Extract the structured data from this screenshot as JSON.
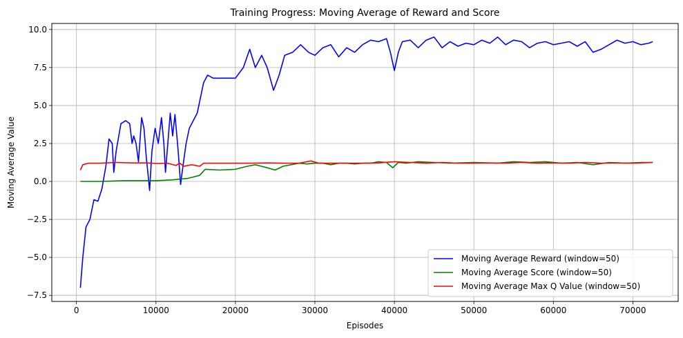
{
  "chart_data": {
    "type": "line",
    "title": "Training Progress: Moving Average of Reward and Score",
    "xlabel": "Episodes",
    "ylabel": "Moving Average Value",
    "xlim": [
      -3100,
      75700
    ],
    "ylim": [
      -7.9,
      10.4
    ],
    "xticks": [
      0,
      10000,
      20000,
      30000,
      40000,
      50000,
      60000,
      70000
    ],
    "xtick_labels": [
      "0",
      "10000",
      "20000",
      "30000",
      "40000",
      "50000",
      "60000",
      "70000"
    ],
    "yticks": [
      -7.5,
      -5.0,
      -2.5,
      0.0,
      2.5,
      5.0,
      7.5,
      10.0
    ],
    "ytick_labels": [
      "−7.5",
      "−5.0",
      "−2.5",
      "0.0",
      "2.5",
      "5.0",
      "7.5",
      "10.0"
    ],
    "grid": true,
    "legend_position": "bottom-right",
    "series": [
      {
        "name": "Moving Average Reward (window=50)",
        "color": "#0000ff",
        "points": [
          [
            500,
            -7.0
          ],
          [
            800,
            -5.0
          ],
          [
            1200,
            -3.0
          ],
          [
            1700,
            -2.5
          ],
          [
            2200,
            -1.2
          ],
          [
            2700,
            -1.3
          ],
          [
            3200,
            -0.5
          ],
          [
            3700,
            1.0
          ],
          [
            4100,
            2.8
          ],
          [
            4500,
            2.5
          ],
          [
            4700,
            0.6
          ],
          [
            5000,
            2.0
          ],
          [
            5600,
            3.8
          ],
          [
            6200,
            4.0
          ],
          [
            6700,
            3.8
          ],
          [
            7000,
            2.5
          ],
          [
            7200,
            3.0
          ],
          [
            7500,
            2.5
          ],
          [
            7800,
            1.3
          ],
          [
            8200,
            4.2
          ],
          [
            8500,
            3.5
          ],
          [
            8800,
            1.5
          ],
          [
            9000,
            0.5
          ],
          [
            9200,
            -0.6
          ],
          [
            9500,
            2.0
          ],
          [
            9900,
            3.5
          ],
          [
            10300,
            2.5
          ],
          [
            10700,
            4.2
          ],
          [
            11000,
            2.5
          ],
          [
            11200,
            0.6
          ],
          [
            11500,
            2.5
          ],
          [
            11800,
            4.5
          ],
          [
            12100,
            3.0
          ],
          [
            12400,
            4.4
          ],
          [
            12800,
            2.0
          ],
          [
            13100,
            -0.2
          ],
          [
            13400,
            1.0
          ],
          [
            13800,
            2.5
          ],
          [
            14200,
            3.5
          ],
          [
            14700,
            4.0
          ],
          [
            15200,
            4.5
          ],
          [
            15600,
            5.5
          ],
          [
            16000,
            6.5
          ],
          [
            16500,
            7.0
          ],
          [
            17200,
            6.8
          ],
          [
            18000,
            6.8
          ],
          [
            19000,
            6.8
          ],
          [
            20000,
            6.8
          ],
          [
            21000,
            7.5
          ],
          [
            21800,
            8.7
          ],
          [
            22500,
            7.5
          ],
          [
            23300,
            8.3
          ],
          [
            24000,
            7.5
          ],
          [
            24800,
            6.0
          ],
          [
            25500,
            7.0
          ],
          [
            26200,
            8.3
          ],
          [
            27200,
            8.5
          ],
          [
            28200,
            9.0
          ],
          [
            29200,
            8.5
          ],
          [
            30000,
            8.3
          ],
          [
            31000,
            8.8
          ],
          [
            32000,
            9.0
          ],
          [
            33000,
            8.2
          ],
          [
            34000,
            8.8
          ],
          [
            35000,
            8.5
          ],
          [
            36000,
            9.0
          ],
          [
            37000,
            9.3
          ],
          [
            38000,
            9.2
          ],
          [
            39000,
            9.4
          ],
          [
            39500,
            8.5
          ],
          [
            40000,
            7.3
          ],
          [
            40500,
            8.5
          ],
          [
            41000,
            9.2
          ],
          [
            42000,
            9.3
          ],
          [
            43000,
            8.8
          ],
          [
            44000,
            9.3
          ],
          [
            45000,
            9.5
          ],
          [
            46000,
            8.8
          ],
          [
            47000,
            9.2
          ],
          [
            48000,
            8.9
          ],
          [
            49000,
            9.1
          ],
          [
            50000,
            9.0
          ],
          [
            51000,
            9.3
          ],
          [
            52000,
            9.1
          ],
          [
            53000,
            9.5
          ],
          [
            54000,
            9.0
          ],
          [
            55000,
            9.3
          ],
          [
            56000,
            9.2
          ],
          [
            57000,
            8.8
          ],
          [
            58000,
            9.1
          ],
          [
            59000,
            9.2
          ],
          [
            60000,
            9.0
          ],
          [
            61000,
            9.1
          ],
          [
            62000,
            9.2
          ],
          [
            63000,
            8.9
          ],
          [
            64000,
            9.2
          ],
          [
            65000,
            8.5
          ],
          [
            66000,
            8.7
          ],
          [
            67000,
            9.0
          ],
          [
            68000,
            9.3
          ],
          [
            69000,
            9.1
          ],
          [
            70000,
            9.2
          ],
          [
            71000,
            9.0
          ],
          [
            72000,
            9.1
          ],
          [
            72500,
            9.2
          ]
        ]
      },
      {
        "name": "Moving Average Score (window=50)",
        "color": "#008000",
        "points": [
          [
            500,
            0.0
          ],
          [
            3000,
            0.0
          ],
          [
            6000,
            0.05
          ],
          [
            8500,
            0.05
          ],
          [
            10000,
            0.05
          ],
          [
            12000,
            0.1
          ],
          [
            14000,
            0.2
          ],
          [
            15500,
            0.4
          ],
          [
            16200,
            0.8
          ],
          [
            18000,
            0.75
          ],
          [
            20000,
            0.8
          ],
          [
            21500,
            1.0
          ],
          [
            22500,
            1.1
          ],
          [
            24000,
            0.9
          ],
          [
            25000,
            0.75
          ],
          [
            26000,
            1.0
          ],
          [
            27000,
            1.1
          ],
          [
            28000,
            1.2
          ],
          [
            29000,
            1.15
          ],
          [
            30000,
            1.2
          ],
          [
            31000,
            1.2
          ],
          [
            32000,
            1.1
          ],
          [
            33000,
            1.2
          ],
          [
            34000,
            1.2
          ],
          [
            35000,
            1.15
          ],
          [
            36000,
            1.2
          ],
          [
            37000,
            1.2
          ],
          [
            38000,
            1.3
          ],
          [
            39000,
            1.25
          ],
          [
            39800,
            0.9
          ],
          [
            40500,
            1.25
          ],
          [
            41500,
            1.2
          ],
          [
            43000,
            1.3
          ],
          [
            45000,
            1.25
          ],
          [
            47000,
            1.2
          ],
          [
            50000,
            1.25
          ],
          [
            53000,
            1.2
          ],
          [
            55000,
            1.3
          ],
          [
            57000,
            1.25
          ],
          [
            59000,
            1.3
          ],
          [
            61000,
            1.2
          ],
          [
            63000,
            1.25
          ],
          [
            65000,
            1.1
          ],
          [
            67000,
            1.25
          ],
          [
            69000,
            1.2
          ],
          [
            71000,
            1.25
          ],
          [
            72500,
            1.25
          ]
        ]
      },
      {
        "name": "Moving Average Max Q Value (window=50)",
        "color": "#ff0000",
        "points": [
          [
            500,
            0.75
          ],
          [
            800,
            1.1
          ],
          [
            1500,
            1.2
          ],
          [
            3000,
            1.2
          ],
          [
            5000,
            1.25
          ],
          [
            7000,
            1.22
          ],
          [
            9000,
            1.22
          ],
          [
            10000,
            1.18
          ],
          [
            11500,
            1.2
          ],
          [
            12500,
            1.05
          ],
          [
            13000,
            1.2
          ],
          [
            13500,
            1.0
          ],
          [
            14500,
            1.1
          ],
          [
            15500,
            1.0
          ],
          [
            16000,
            1.2
          ],
          [
            18000,
            1.2
          ],
          [
            20000,
            1.2
          ],
          [
            22000,
            1.2
          ],
          [
            24000,
            1.22
          ],
          [
            26000,
            1.2
          ],
          [
            28000,
            1.2
          ],
          [
            29500,
            1.35
          ],
          [
            30500,
            1.2
          ],
          [
            32000,
            1.2
          ],
          [
            34000,
            1.2
          ],
          [
            36000,
            1.2
          ],
          [
            38000,
            1.22
          ],
          [
            40000,
            1.3
          ],
          [
            42000,
            1.25
          ],
          [
            44000,
            1.2
          ],
          [
            46000,
            1.25
          ],
          [
            48000,
            1.2
          ],
          [
            50000,
            1.2
          ],
          [
            52000,
            1.22
          ],
          [
            54000,
            1.2
          ],
          [
            56000,
            1.25
          ],
          [
            58000,
            1.2
          ],
          [
            60000,
            1.22
          ],
          [
            62000,
            1.2
          ],
          [
            64000,
            1.25
          ],
          [
            66000,
            1.2
          ],
          [
            68000,
            1.22
          ],
          [
            70000,
            1.2
          ],
          [
            72500,
            1.25
          ]
        ]
      }
    ]
  }
}
